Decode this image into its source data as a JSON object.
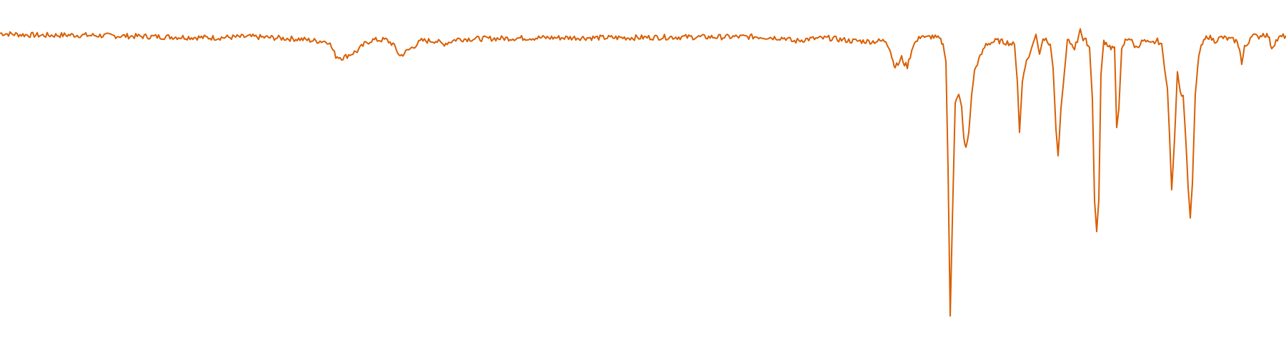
{
  "chart_data": {
    "type": "line",
    "title": "",
    "xlabel": "",
    "ylabel": "",
    "xlim": [
      0,
      1800
    ],
    "ylim": [
      0,
      1.0
    ],
    "grid": false,
    "legend": "none",
    "axes_visible": false,
    "series": [
      {
        "color": "#d95f02",
        "points": [
          [
            0,
            0.902
          ],
          [
            30,
            0.898
          ],
          [
            60,
            0.896
          ],
          [
            100,
            0.897
          ],
          [
            150,
            0.895
          ],
          [
            200,
            0.893
          ],
          [
            250,
            0.891
          ],
          [
            300,
            0.889
          ],
          [
            350,
            0.892
          ],
          [
            390,
            0.888
          ],
          [
            420,
            0.885
          ],
          [
            440,
            0.88
          ],
          [
            460,
            0.878
          ],
          [
            470,
            0.835
          ],
          [
            480,
            0.83
          ],
          [
            490,
            0.84
          ],
          [
            500,
            0.85
          ],
          [
            510,
            0.87
          ],
          [
            520,
            0.882
          ],
          [
            540,
            0.883
          ],
          [
            550,
            0.87
          ],
          [
            560,
            0.835
          ],
          [
            570,
            0.85
          ],
          [
            590,
            0.88
          ],
          [
            610,
            0.88
          ],
          [
            620,
            0.87
          ],
          [
            640,
            0.885
          ],
          [
            700,
            0.887
          ],
          [
            760,
            0.889
          ],
          [
            820,
            0.889
          ],
          [
            880,
            0.889
          ],
          [
            940,
            0.891
          ],
          [
            1000,
            0.891
          ],
          [
            1060,
            0.892
          ],
          [
            1100,
            0.888
          ],
          [
            1110,
            0.878
          ],
          [
            1130,
            0.885
          ],
          [
            1160,
            0.888
          ],
          [
            1190,
            0.88
          ],
          [
            1220,
            0.878
          ],
          [
            1240,
            0.88
          ],
          [
            1245,
            0.86
          ],
          [
            1250,
            0.82
          ],
          [
            1253,
            0.805
          ],
          [
            1257,
            0.81
          ],
          [
            1262,
            0.83
          ],
          [
            1266,
            0.812
          ],
          [
            1270,
            0.805
          ],
          [
            1274,
            0.835
          ],
          [
            1278,
            0.868
          ],
          [
            1284,
            0.88
          ],
          [
            1290,
            0.898
          ],
          [
            1296,
            0.888
          ],
          [
            1305,
            0.893
          ],
          [
            1315,
            0.885
          ],
          [
            1320,
            0.87
          ],
          [
            1324,
            0.82
          ],
          [
            1327,
            0.5
          ],
          [
            1330,
            0.07
          ],
          [
            1333,
            0.35
          ],
          [
            1337,
            0.7
          ],
          [
            1342,
            0.718
          ],
          [
            1346,
            0.685
          ],
          [
            1349,
            0.59
          ],
          [
            1352,
            0.562
          ],
          [
            1356,
            0.61
          ],
          [
            1360,
            0.72
          ],
          [
            1364,
            0.79
          ],
          [
            1368,
            0.815
          ],
          [
            1372,
            0.832
          ],
          [
            1380,
            0.87
          ],
          [
            1395,
            0.88
          ],
          [
            1410,
            0.875
          ],
          [
            1420,
            0.868
          ],
          [
            1424,
            0.76
          ],
          [
            1427,
            0.61
          ],
          [
            1431,
            0.76
          ],
          [
            1435,
            0.81
          ],
          [
            1442,
            0.845
          ],
          [
            1450,
            0.9
          ],
          [
            1455,
            0.84
          ],
          [
            1460,
            0.89
          ],
          [
            1464,
            0.88
          ],
          [
            1470,
            0.87
          ],
          [
            1474,
            0.8
          ],
          [
            1478,
            0.62
          ],
          [
            1481,
            0.54
          ],
          [
            1485,
            0.68
          ],
          [
            1490,
            0.79
          ],
          [
            1494,
            0.88
          ],
          [
            1500,
            0.87
          ],
          [
            1504,
            0.86
          ],
          [
            1508,
            0.88
          ],
          [
            1512,
            0.92
          ],
          [
            1516,
            0.88
          ],
          [
            1520,
            0.88
          ],
          [
            1525,
            0.86
          ],
          [
            1529,
            0.71
          ],
          [
            1532,
            0.41
          ],
          [
            1535,
            0.32
          ],
          [
            1538,
            0.41
          ],
          [
            1541,
            0.78
          ],
          [
            1545,
            0.88
          ],
          [
            1550,
            0.87
          ],
          [
            1555,
            0.86
          ],
          [
            1560,
            0.86
          ],
          [
            1563,
            0.625
          ],
          [
            1566,
            0.68
          ],
          [
            1570,
            0.85
          ],
          [
            1575,
            0.88
          ],
          [
            1580,
            0.89
          ],
          [
            1590,
            0.86
          ],
          [
            1600,
            0.88
          ],
          [
            1610,
            0.87
          ],
          [
            1620,
            0.88
          ],
          [
            1626,
            0.87
          ],
          [
            1630,
            0.8
          ],
          [
            1634,
            0.74
          ],
          [
            1637,
            0.6
          ],
          [
            1640,
            0.44
          ],
          [
            1644,
            0.59
          ],
          [
            1648,
            0.79
          ],
          [
            1652,
            0.73
          ],
          [
            1656,
            0.72
          ],
          [
            1660,
            0.58
          ],
          [
            1663,
            0.45
          ],
          [
            1666,
            0.36
          ],
          [
            1669,
            0.46
          ],
          [
            1673,
            0.72
          ],
          [
            1678,
            0.84
          ],
          [
            1683,
            0.87
          ],
          [
            1690,
            0.895
          ],
          [
            1700,
            0.88
          ],
          [
            1710,
            0.89
          ],
          [
            1720,
            0.885
          ],
          [
            1730,
            0.88
          ],
          [
            1735,
            0.86
          ],
          [
            1738,
            0.81
          ],
          [
            1742,
            0.86
          ],
          [
            1746,
            0.87
          ],
          [
            1752,
            0.9
          ],
          [
            1760,
            0.89
          ],
          [
            1768,
            0.9
          ],
          [
            1775,
            0.895
          ],
          [
            1780,
            0.86
          ],
          [
            1786,
            0.88
          ],
          [
            1792,
            0.89
          ],
          [
            1800,
            0.895
          ]
        ]
      }
    ]
  }
}
